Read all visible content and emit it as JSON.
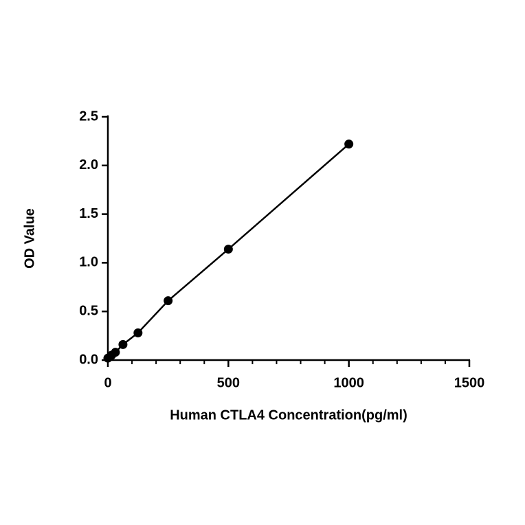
{
  "chart_data": {
    "type": "scatter",
    "x_label": "Human CTLA4 Concentration(pg/ml)",
    "y_label": "OD Value",
    "series": [
      {
        "x": [
          0,
          15.6,
          31.25,
          62.5,
          125,
          250,
          500,
          1000
        ],
        "values": [
          0.02,
          0.05,
          0.08,
          0.16,
          0.28,
          0.61,
          1.14,
          2.22
        ],
        "color": "#000000"
      }
    ],
    "connect": true,
    "xlim": [
      0,
      1500
    ],
    "xticks": [
      0,
      500,
      1000,
      1500
    ],
    "xminorticks": [
      100,
      200,
      300,
      400,
      600,
      700,
      800,
      900,
      1100,
      1200,
      1300,
      1400
    ],
    "ylim": [
      0,
      2.5
    ],
    "yticks": [
      {
        "value": 0,
        "label": "0.0"
      },
      0.5,
      {
        "value": 1,
        "label": "1.0"
      },
      1.5,
      {
        "value": 2,
        "label": "2.0"
      },
      2.5
    ]
  }
}
